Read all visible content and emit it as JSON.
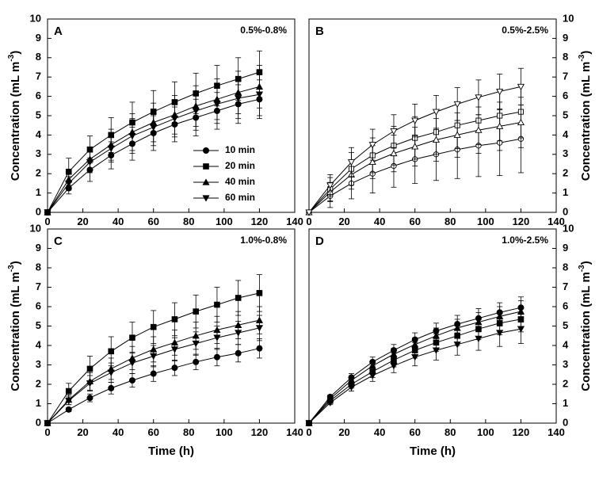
{
  "chart_data": [
    {
      "panel": "A",
      "annotation": "0.5%-0.8%",
      "type": "line",
      "xlim": [
        0,
        140
      ],
      "ylim": [
        0,
        10
      ],
      "xticks": [
        "0",
        "20",
        "40",
        "60",
        "80",
        "100",
        "120",
        "140"
      ],
      "yticks": [
        "0",
        "1",
        "2",
        "3",
        "4",
        "5",
        "6",
        "7",
        "8",
        "9",
        "10"
      ],
      "ylabel_side": "left",
      "show_xlabel": false,
      "x": [
        0,
        12,
        24,
        36,
        48,
        60,
        72,
        84,
        96,
        108,
        120
      ],
      "series": [
        {
          "name": "10 min",
          "marker": "circle",
          "values": [
            0,
            1.25,
            2.2,
            2.95,
            3.55,
            4.1,
            4.55,
            4.9,
            5.25,
            5.6,
            5.85
          ],
          "errors": [
            0,
            0.3,
            0.6,
            0.7,
            0.85,
            0.9,
            0.9,
            0.95,
            0.95,
            1.0,
            1.0
          ]
        },
        {
          "name": "20 min",
          "marker": "square",
          "values": [
            0,
            2.1,
            3.25,
            4.0,
            4.65,
            5.2,
            5.7,
            6.15,
            6.55,
            6.9,
            7.25
          ],
          "errors": [
            0,
            0.7,
            0.7,
            0.9,
            1.05,
            1.1,
            1.05,
            1.05,
            1.05,
            1.1,
            1.1
          ]
        },
        {
          "name": "40 min",
          "marker": "triangle-up",
          "values": [
            0,
            1.7,
            2.75,
            3.5,
            4.15,
            4.65,
            5.05,
            5.5,
            5.85,
            6.2,
            6.5
          ],
          "errors": [
            0,
            0.4,
            0.6,
            0.8,
            0.95,
            1.0,
            1.0,
            1.05,
            1.05,
            1.1,
            1.1
          ]
        },
        {
          "name": "60 min",
          "marker": "triangle-down",
          "values": [
            0,
            1.5,
            2.6,
            3.3,
            3.95,
            4.4,
            4.85,
            5.25,
            5.6,
            5.9,
            6.1
          ],
          "errors": [
            0,
            0.35,
            0.55,
            0.7,
            0.9,
            0.95,
            0.95,
            1.0,
            1.0,
            1.05,
            1.1
          ]
        }
      ],
      "legend": {
        "location": "center-right",
        "entries": [
          "10 min",
          "20 min",
          "40 min",
          "60 min"
        ]
      }
    },
    {
      "panel": "B",
      "annotation": "0.5%-2.5%",
      "type": "line",
      "xlim": [
        0,
        140
      ],
      "ylim": [
        0,
        10
      ],
      "xticks": [
        "0",
        "20",
        "40",
        "60",
        "80",
        "100",
        "120",
        "140"
      ],
      "yticks": [
        "0",
        "1",
        "2",
        "3",
        "4",
        "5",
        "6",
        "7",
        "8",
        "9",
        "10"
      ],
      "ylabel_side": "right",
      "show_xlabel": false,
      "x": [
        0,
        12,
        24,
        36,
        48,
        60,
        72,
        84,
        96,
        108,
        120
      ],
      "series": [
        {
          "name": "10 min",
          "marker": "circle-open",
          "values": [
            0,
            0.85,
            1.5,
            2.0,
            2.4,
            2.75,
            3.0,
            3.25,
            3.45,
            3.6,
            3.8
          ],
          "errors": [
            0,
            0.6,
            0.8,
            1.0,
            1.1,
            1.25,
            1.35,
            1.5,
            1.6,
            1.7,
            1.75
          ]
        },
        {
          "name": "20 min",
          "marker": "square-open",
          "values": [
            0,
            1.2,
            2.25,
            2.95,
            3.45,
            3.85,
            4.15,
            4.5,
            4.75,
            5.0,
            5.2
          ],
          "errors": [
            0,
            0.6,
            0.85,
            0.9,
            1.0,
            1.1,
            1.15,
            1.2,
            1.25,
            1.3,
            1.35
          ]
        },
        {
          "name": "40 min",
          "marker": "triangle-up-open",
          "values": [
            0,
            1.05,
            1.95,
            2.6,
            3.05,
            3.4,
            3.75,
            4.0,
            4.25,
            4.45,
            4.65
          ],
          "errors": [
            0,
            0.5,
            0.75,
            0.85,
            0.95,
            1.0,
            1.1,
            1.15,
            1.2,
            1.25,
            1.3
          ]
        },
        {
          "name": "60 min",
          "marker": "triangle-down-open",
          "values": [
            0,
            1.4,
            2.6,
            3.5,
            4.2,
            4.75,
            5.2,
            5.6,
            5.95,
            6.25,
            6.5
          ],
          "errors": [
            0,
            0.55,
            0.75,
            0.8,
            0.85,
            0.85,
            0.85,
            0.85,
            0.9,
            0.9,
            0.95
          ]
        }
      ]
    },
    {
      "panel": "C",
      "annotation": "1.0%-0.8%",
      "type": "line",
      "xlim": [
        0,
        140
      ],
      "ylim": [
        0,
        10
      ],
      "xticks": [
        "0",
        "20",
        "40",
        "60",
        "80",
        "100",
        "120",
        "140"
      ],
      "yticks": [
        "0",
        "1",
        "2",
        "3",
        "4",
        "5",
        "6",
        "7",
        "8",
        "9",
        "10"
      ],
      "ylabel_side": "left",
      "show_xlabel": true,
      "x": [
        0,
        12,
        24,
        36,
        48,
        60,
        72,
        84,
        96,
        108,
        120
      ],
      "series": [
        {
          "name": "10 min",
          "marker": "circle",
          "values": [
            0,
            0.7,
            1.3,
            1.8,
            2.2,
            2.55,
            2.85,
            3.15,
            3.4,
            3.6,
            3.85
          ],
          "errors": [
            0,
            0.1,
            0.2,
            0.3,
            0.35,
            0.4,
            0.4,
            0.4,
            0.45,
            0.45,
            0.5
          ]
        },
        {
          "name": "20 min",
          "marker": "square",
          "values": [
            0,
            1.65,
            2.8,
            3.7,
            4.4,
            4.95,
            5.35,
            5.75,
            6.1,
            6.45,
            6.7
          ],
          "errors": [
            0,
            0.4,
            0.65,
            0.75,
            0.8,
            0.85,
            0.85,
            0.85,
            0.9,
            0.9,
            0.95
          ]
        },
        {
          "name": "40 min",
          "marker": "triangle-up",
          "values": [
            0,
            1.2,
            2.15,
            2.8,
            3.35,
            3.8,
            4.15,
            4.5,
            4.8,
            5.05,
            5.3
          ],
          "errors": [
            0,
            0.25,
            0.45,
            0.55,
            0.6,
            0.65,
            0.65,
            0.7,
            0.7,
            0.7,
            0.7
          ]
        },
        {
          "name": "60 min",
          "marker": "triangle-down",
          "values": [
            0,
            1.15,
            2.05,
            2.6,
            3.1,
            3.45,
            3.8,
            4.1,
            4.4,
            4.65,
            4.9
          ],
          "errors": [
            0,
            0.2,
            0.4,
            0.5,
            0.55,
            0.55,
            0.6,
            0.6,
            0.6,
            0.6,
            0.65
          ]
        }
      ]
    },
    {
      "panel": "D",
      "annotation": "1.0%-2.5%",
      "type": "line",
      "xlim": [
        0,
        140
      ],
      "ylim": [
        0,
        10
      ],
      "xticks": [
        "0",
        "20",
        "40",
        "60",
        "80",
        "100",
        "120",
        "140"
      ],
      "yticks": [
        "0",
        "1",
        "2",
        "3",
        "4",
        "5",
        "6",
        "7",
        "8",
        "9",
        "10"
      ],
      "ylabel_side": "right",
      "show_xlabel": true,
      "x": [
        0,
        12,
        24,
        36,
        48,
        60,
        72,
        84,
        96,
        108,
        120
      ],
      "series": [
        {
          "name": "10 min",
          "marker": "circle",
          "values": [
            0,
            1.35,
            2.35,
            3.15,
            3.75,
            4.3,
            4.75,
            5.1,
            5.4,
            5.7,
            5.95
          ],
          "errors": [
            0,
            0.1,
            0.2,
            0.25,
            0.3,
            0.35,
            0.4,
            0.45,
            0.5,
            0.5,
            0.55
          ]
        },
        {
          "name": "20 min",
          "marker": "square",
          "values": [
            0,
            1.15,
            2.0,
            2.65,
            3.25,
            3.75,
            4.15,
            4.5,
            4.85,
            5.15,
            5.35
          ],
          "errors": [
            0,
            0.1,
            0.2,
            0.3,
            0.35,
            0.4,
            0.45,
            0.5,
            0.55,
            0.6,
            0.65
          ]
        },
        {
          "name": "40 min",
          "marker": "triangle-up",
          "values": [
            0,
            1.25,
            2.2,
            2.95,
            3.55,
            4.05,
            4.5,
            4.9,
            5.2,
            5.5,
            5.75
          ],
          "errors": [
            0,
            0.1,
            0.2,
            0.25,
            0.3,
            0.35,
            0.4,
            0.45,
            0.5,
            0.5,
            0.55
          ]
        },
        {
          "name": "60 min",
          "marker": "triangle-down",
          "values": [
            0,
            1.05,
            1.85,
            2.45,
            2.95,
            3.4,
            3.75,
            4.05,
            4.35,
            4.65,
            4.85
          ],
          "errors": [
            0,
            0.1,
            0.2,
            0.3,
            0.35,
            0.45,
            0.5,
            0.55,
            0.6,
            0.7,
            0.75
          ]
        }
      ]
    }
  ],
  "labels": {
    "ylabel_main": "Concentration (mL m",
    "ylabel_exp": "-3",
    "ylabel_close": ")",
    "xlabel": "Time (h)"
  },
  "colors": {
    "line": "#000000",
    "open_fill": "#ffffff"
  }
}
